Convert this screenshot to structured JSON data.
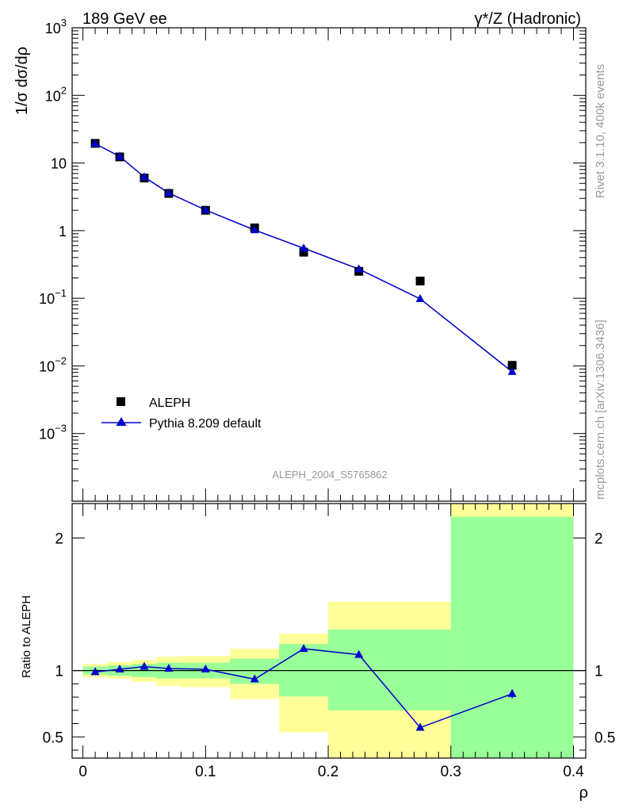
{
  "header": {
    "left": "189 GeV ee",
    "right": "γ*/Z (Hadronic)"
  },
  "side_labels": {
    "upper": "Rivet 3.1.10,  400k events",
    "lower": "mcplots.cern.ch [arXiv:1306.3436]"
  },
  "watermark": "ALEPH_2004_S5765862",
  "colors": {
    "data": "#000000",
    "mc": "#0000cc",
    "band_inner": "#99ff99",
    "band_outer": "#ffff99",
    "ref_line": "#000000"
  },
  "chart_data": [
    {
      "type": "scatter",
      "panel": "main",
      "ylabel": "1/σ dσ/dρ",
      "yscale": "log",
      "xlim": [
        -0.0088,
        0.41
      ],
      "ylim": [
        0.0001,
        1000
      ],
      "y_ticks": [
        {
          "v": 1000,
          "base": "10",
          "exp": "3"
        },
        {
          "v": 100,
          "base": "10",
          "exp": "2"
        },
        {
          "v": 10,
          "base": "10",
          "exp": ""
        },
        {
          "v": 1,
          "base": "1",
          "exp": ""
        },
        {
          "v": 0.1,
          "base": "10",
          "exp": "−1"
        },
        {
          "v": 0.01,
          "base": "10",
          "exp": "−2"
        },
        {
          "v": 0.001,
          "base": "10",
          "exp": "−3"
        }
      ],
      "legend": [
        "ALEPH",
        "Pythia 8.209 default"
      ],
      "legend_position": "lower-left",
      "series": [
        {
          "name": "ALEPH",
          "x": [
            0.01,
            0.03,
            0.05,
            0.07,
            0.1,
            0.14,
            0.18,
            0.225,
            0.275,
            0.35
          ],
          "y": [
            19.5,
            12.3,
            6.0,
            3.55,
            2.0,
            1.1,
            0.48,
            0.25,
            0.18,
            0.0102
          ]
        },
        {
          "name": "Pythia 8.209 default",
          "x": [
            0.01,
            0.03,
            0.05,
            0.07,
            0.1,
            0.14,
            0.18,
            0.225,
            0.275,
            0.35
          ],
          "y": [
            19.3,
            12.5,
            6.2,
            3.6,
            2.02,
            1.02,
            0.55,
            0.27,
            0.098,
            0.0082
          ]
        }
      ]
    },
    {
      "type": "line",
      "panel": "ratio",
      "xlabel": "ρ",
      "ylabel": "Ratio to ALEPH",
      "xlim": [
        -0.0088,
        0.41
      ],
      "ylim": [
        0.34,
        2.26
      ],
      "x_ticks": [
        0,
        0.1,
        0.2,
        0.3,
        0.4
      ],
      "x_tick_labels": [
        "0",
        "0.1",
        "0.2",
        "0.3",
        "0.4"
      ],
      "y_ticks": [
        0.5,
        1,
        2
      ],
      "y_tick_labels": [
        "0.5",
        "1",
        "2"
      ],
      "bands": [
        {
          "x0": 0.0,
          "x1": 0.02,
          "inner": [
            0.97,
            1.03
          ],
          "outer": [
            0.95,
            1.05
          ]
        },
        {
          "x0": 0.02,
          "x1": 0.04,
          "inner": [
            0.96,
            1.04
          ],
          "outer": [
            0.94,
            1.065
          ]
        },
        {
          "x0": 0.04,
          "x1": 0.06,
          "inner": [
            0.95,
            1.05
          ],
          "outer": [
            0.915,
            1.08
          ]
        },
        {
          "x0": 0.06,
          "x1": 0.08,
          "inner": [
            0.94,
            1.06
          ],
          "outer": [
            0.885,
            1.105
          ]
        },
        {
          "x0": 0.08,
          "x1": 0.12,
          "inner": [
            0.94,
            1.06
          ],
          "outer": [
            0.875,
            1.11
          ]
        },
        {
          "x0": 0.12,
          "x1": 0.16,
          "inner": [
            0.9,
            1.09
          ],
          "outer": [
            0.785,
            1.165
          ]
        },
        {
          "x0": 0.16,
          "x1": 0.2,
          "inner": [
            0.805,
            1.2
          ],
          "outer": [
            0.535,
            1.28
          ]
        },
        {
          "x0": 0.2,
          "x1": 0.3,
          "inner": [
            0.7,
            1.31
          ],
          "outer": [
            0.34,
            1.52
          ]
        },
        {
          "x0": 0.3,
          "x1": 0.4,
          "inner": [
            0.34,
            2.16
          ],
          "outer": [
            0.34,
            2.26
          ]
        }
      ],
      "series": [
        {
          "name": "Pythia 8.209 default",
          "x": [
            0.01,
            0.03,
            0.05,
            0.07,
            0.1,
            0.14,
            0.18,
            0.225,
            0.275,
            0.35
          ],
          "y": [
            0.99,
            1.01,
            1.03,
            1.015,
            1.01,
            0.935,
            1.165,
            1.12,
            0.57,
            0.825
          ],
          "yerr_last": [
            0.79,
            0.86
          ]
        }
      ]
    }
  ]
}
